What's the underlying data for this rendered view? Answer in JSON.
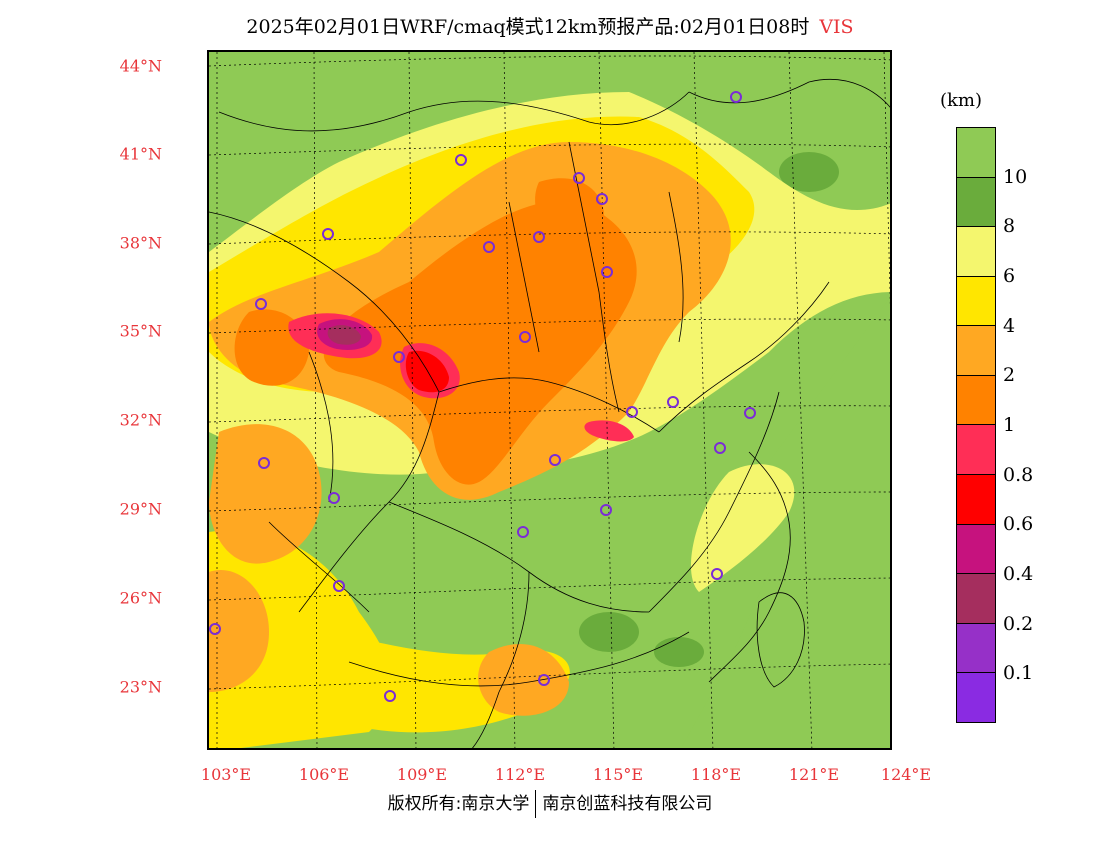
{
  "title": {
    "main": "2025年02月01日WRF/cmaq模式12km预报产品:02月01日08时",
    "variable": "VIS"
  },
  "axes": {
    "lat_labels": [
      "44°N",
      "41°N",
      "38°N",
      "35°N",
      "32°N",
      "29°N",
      "26°N",
      "23°N"
    ],
    "lon_labels": [
      "103°E",
      "106°E",
      "109°E",
      "112°E",
      "115°E",
      "118°E",
      "121°E",
      "124°E"
    ]
  },
  "legend": {
    "unit": "(km)",
    "labels": [
      "10",
      "8",
      "6",
      "4",
      "2",
      "1",
      "0.8",
      "0.6",
      "0.4",
      "0.2",
      "0.1"
    ],
    "colors": [
      "#8fca55",
      "#6aac3c",
      "#f4f66e",
      "#ffe600",
      "#ffa822",
      "#ff8200",
      "#ff2e56",
      "#ff0000",
      "#c6127e",
      "#a52e5e",
      "#9630c8",
      "#8a2be2"
    ]
  },
  "copyright": {
    "left": "版权所有:南京大学",
    "right": "南京创蓝科技有限公司"
  },
  "colors": {
    "label_red": "#e8353a",
    "station_marker": "#7b2cd6"
  }
}
